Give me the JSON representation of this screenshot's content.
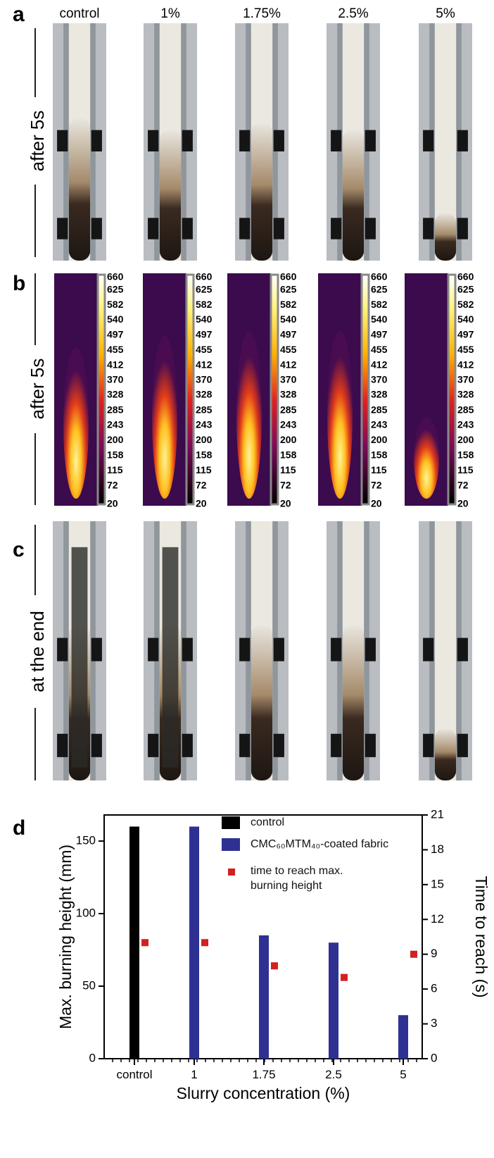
{
  "panel_a": {
    "letter": "a",
    "row_label": "after 5s",
    "columns": [
      "control",
      "1%",
      "1.75%",
      "2.5%",
      "5%"
    ]
  },
  "panel_b": {
    "letter": "b",
    "row_label": "after 5s",
    "colorbar_ticks": [
      660,
      625,
      582,
      540,
      497,
      455,
      412,
      370,
      328,
      285,
      243,
      200,
      158,
      115,
      72,
      20
    ]
  },
  "panel_c": {
    "letter": "c",
    "row_label": "at the end"
  },
  "chart_data": {
    "type": "bar",
    "letter": "d",
    "x_label": "Slurry concentration (%)",
    "y_label": "Max. burning height (mm)",
    "y2_label": "Time to reach (s)",
    "categories": [
      "control",
      "1",
      "1.75",
      "2.5",
      "5"
    ],
    "series": [
      {
        "name": "control",
        "color": "#000000",
        "values": [
          160,
          null,
          null,
          null,
          null
        ]
      },
      {
        "name": "CMC₆₀MTM₄₀-coated fabric",
        "color": "#2e3192",
        "values": [
          null,
          160,
          85,
          80,
          30
        ]
      },
      {
        "name": "time to reach max. burning height",
        "color": "#d42020",
        "type": "scatter",
        "axis": "y2",
        "values": [
          10,
          10,
          8,
          7,
          9
        ]
      }
    ],
    "ylim": [
      0,
      168
    ],
    "yticks": [
      0,
      50,
      100,
      150
    ],
    "y2lim": [
      0,
      21
    ],
    "y2ticks": [
      0,
      3,
      6,
      9,
      12,
      15,
      18,
      21
    ]
  }
}
